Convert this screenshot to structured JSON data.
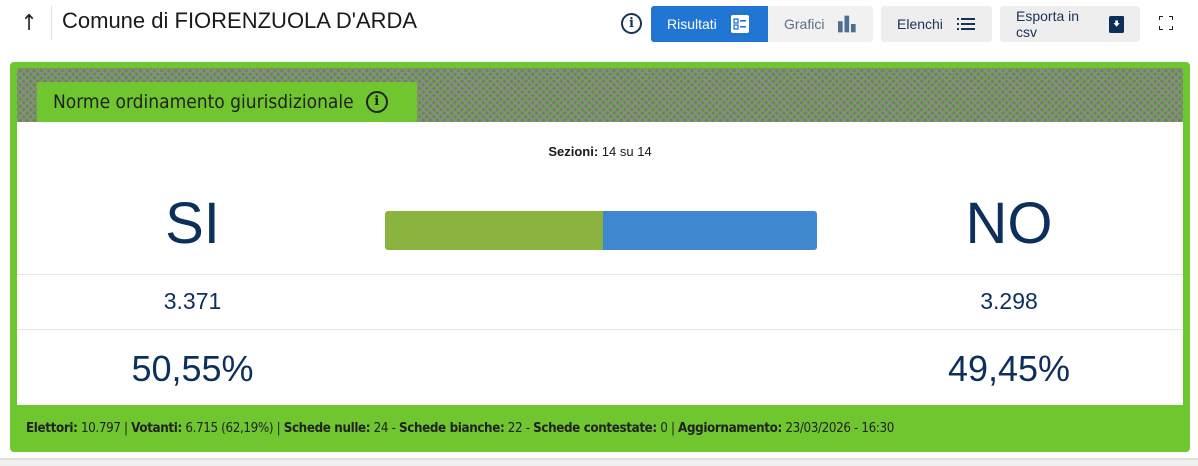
{
  "header": {
    "title": "Comune di FIORENZUOLA D'ARDA",
    "buttons": {
      "results": "Risultati",
      "charts": "Grafici",
      "lists": "Elenchi",
      "export": "Esporta in csv"
    }
  },
  "question": {
    "title": "Norme ordinamento giurisdizionale"
  },
  "sections": {
    "label": "Sezioni:",
    "value": "14 su 14"
  },
  "yes": {
    "label": "SI",
    "votes": "3.371",
    "percent": "50,55%",
    "percent_value": 50.55,
    "color": "#8ab33f"
  },
  "no": {
    "label": "NO",
    "votes": "3.298",
    "percent": "49,45%",
    "percent_value": 49.45,
    "color": "#3f87cf"
  },
  "footer": {
    "electors_label": "Elettori:",
    "electors": "10.797",
    "voters_label": "Votanti:",
    "voters": "6.715 (62,19%)",
    "null_label": "Schede nulle:",
    "null": "24",
    "blank_label": "Schede bianche:",
    "blank": "22",
    "contested_label": "Schede contestate:",
    "contested": "0",
    "updated_label": "Aggiornamento:",
    "updated": "23/03/2026 - 16:30"
  },
  "colors": {
    "accent": "#2176d4",
    "panel": "#6fc62f",
    "text": "#0d2f5c"
  }
}
